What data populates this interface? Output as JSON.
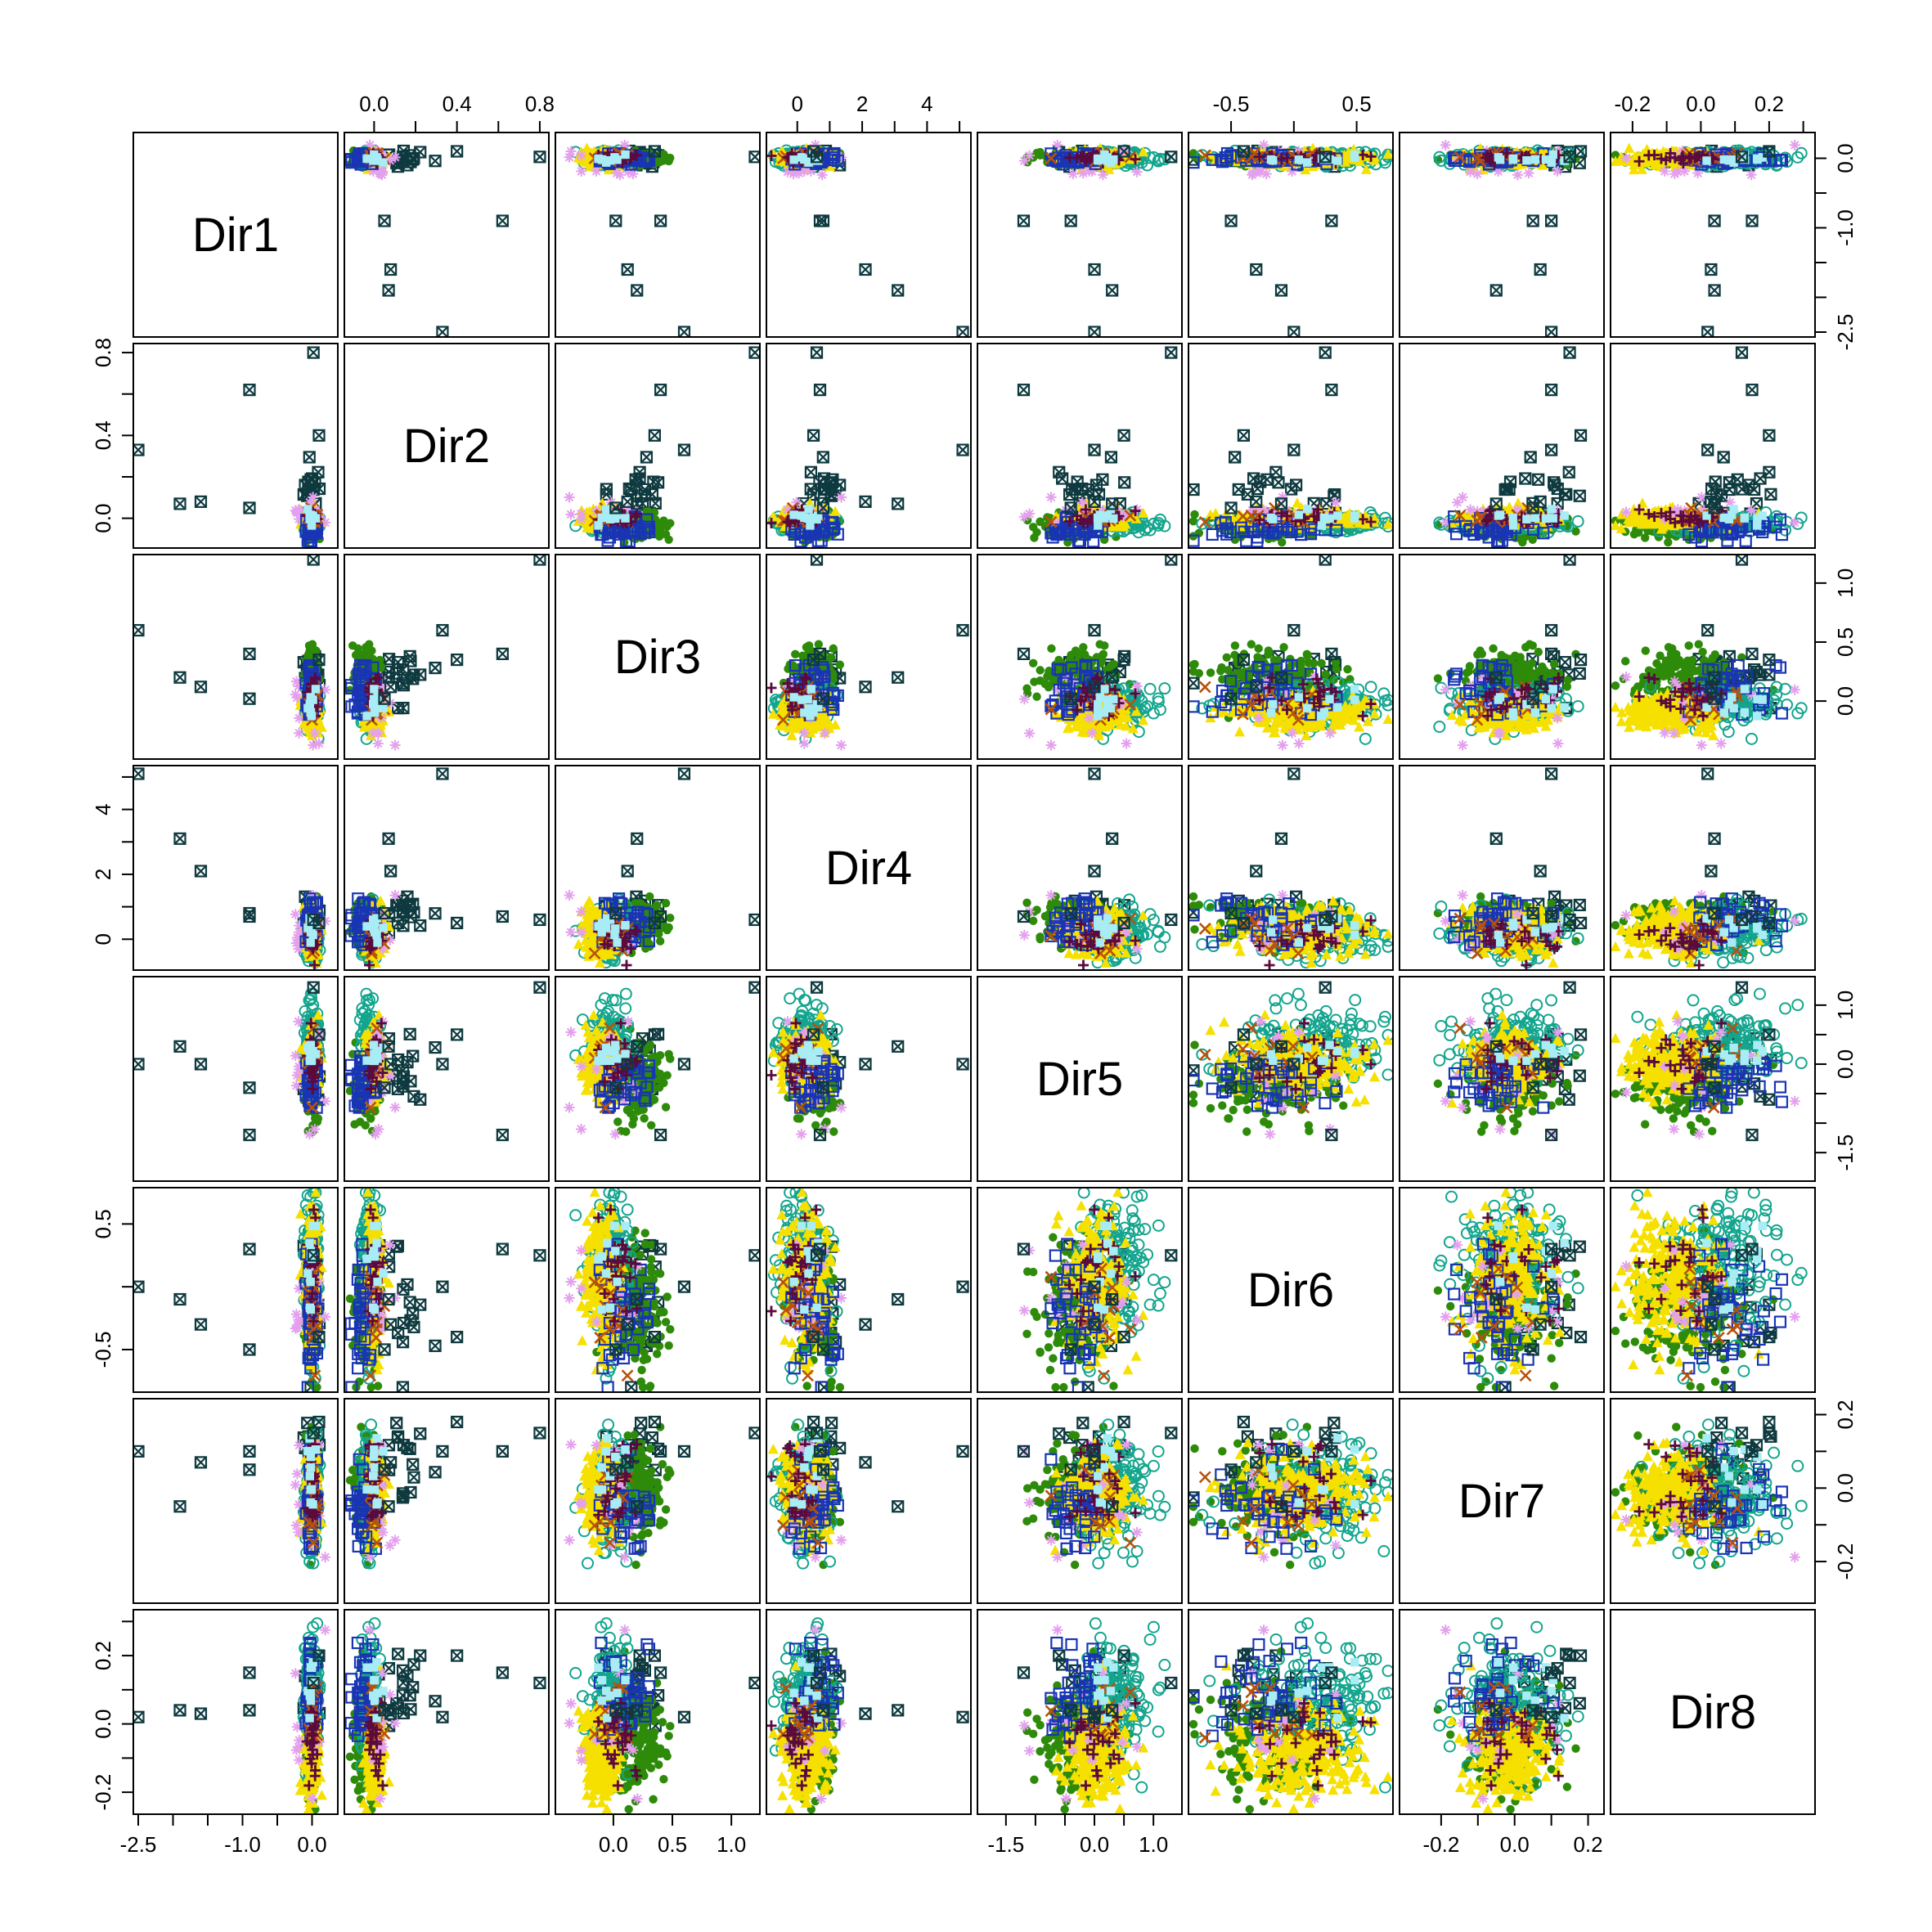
{
  "chart_data": {
    "type": "scatter",
    "subtype": "scatterplot-matrix",
    "variables": [
      "Dir1",
      "Dir2",
      "Dir3",
      "Dir4",
      "Dir5",
      "Dir6",
      "Dir7",
      "Dir8"
    ],
    "axes": [
      {
        "name": "Dir1",
        "range": [
          -2.5,
          0.3
        ],
        "ticks": [
          -2.5,
          -2.0,
          -1.5,
          -1.0,
          -0.5,
          0.0
        ],
        "labels": [
          "-2.5",
          "-1.0",
          "0.0"
        ],
        "label_ticks": [
          -2.5,
          -1.0,
          0.0
        ]
      },
      {
        "name": "Dir2",
        "range": [
          -0.12,
          0.82
        ],
        "ticks": [
          0.0,
          0.2,
          0.4,
          0.6,
          0.8
        ],
        "labels": [
          "0.0",
          "0.4",
          "0.8"
        ],
        "label_ticks": [
          0.0,
          0.4,
          0.8
        ]
      },
      {
        "name": "Dir3",
        "range": [
          -0.45,
          1.2
        ],
        "ticks": [
          0.0,
          0.5,
          1.0
        ],
        "labels": [
          "0.0",
          "0.5",
          "1.0"
        ],
        "label_ticks": [
          0.0,
          0.5,
          1.0
        ]
      },
      {
        "name": "Dir4",
        "range": [
          -0.8,
          5.2
        ],
        "ticks": [
          0,
          1,
          2,
          3,
          4,
          5
        ],
        "labels": [
          "0",
          "2",
          "4"
        ],
        "label_ticks": [
          0,
          2,
          4
        ]
      },
      {
        "name": "Dir5",
        "range": [
          -1.9,
          1.4
        ],
        "ticks": [
          -1.5,
          -1.0,
          -0.5,
          0.0,
          0.5,
          1.0
        ],
        "labels": [
          "-1.5",
          "0.0",
          "1.0"
        ],
        "label_ticks": [
          -1.5,
          0.0,
          1.0
        ]
      },
      {
        "name": "Dir6",
        "range": [
          -0.8,
          0.75
        ],
        "ticks": [
          -0.5,
          0.0,
          0.5
        ],
        "labels": [
          "-0.5",
          "0.5"
        ],
        "label_ticks": [
          -0.5,
          0.5
        ]
      },
      {
        "name": "Dir7",
        "range": [
          -0.3,
          0.23
        ],
        "ticks": [
          -0.2,
          -0.1,
          0.0,
          0.1,
          0.2
        ],
        "labels": [
          "-0.2",
          "0.0",
          "0.2"
        ],
        "label_ticks": [
          -0.2,
          0.0,
          0.2
        ]
      },
      {
        "name": "Dir8",
        "range": [
          -0.25,
          0.32
        ],
        "ticks": [
          -0.2,
          -0.1,
          0.0,
          0.1,
          0.2,
          0.3
        ],
        "labels": [
          "-0.2",
          "0.0",
          "0.2"
        ],
        "label_ticks": [
          -0.2,
          0.0,
          0.2
        ]
      }
    ],
    "groups": [
      {
        "marker": "square-x",
        "color": "#0e3a3f",
        "size": 20
      },
      {
        "marker": "filled-circle",
        "color": "#2e8b0a",
        "size": 160
      },
      {
        "marker": "open-circle",
        "color": "#13a58e",
        "size": 160
      },
      {
        "marker": "filled-triangle",
        "color": "#f5e000",
        "size": 240
      },
      {
        "marker": "asterisk",
        "color": "#e4a0ee",
        "size": 16
      },
      {
        "marker": "open-square",
        "color": "#1935b4",
        "size": 40
      },
      {
        "marker": "x",
        "color": "#b8520a",
        "size": 12
      },
      {
        "marker": "plus",
        "color": "#5a0a3c",
        "size": 25
      },
      {
        "marker": "filled-square",
        "color": "#a8ecf5",
        "size": 10
      }
    ],
    "outliers": [
      [
        -2.5,
        0.33,
        0.6,
        5.1,
        0.0,
        0.0,
        0.1,
        0.02
      ],
      [
        -1.9,
        0.07,
        0.2,
        3.1,
        0.3,
        -0.1,
        -0.05,
        0.04
      ],
      [
        -1.6,
        0.08,
        0.12,
        2.1,
        0.0,
        -0.3,
        0.07,
        0.03
      ],
      [
        -0.9,
        0.05,
        0.02,
        0.8,
        -0.4,
        -0.5,
        0.05,
        0.04
      ],
      [
        -0.9,
        0.62,
        0.4,
        0.7,
        -1.2,
        0.3,
        0.1,
        0.15
      ],
      [
        0.02,
        0.8,
        1.2,
        0.6,
        1.3,
        0.25,
        0.15,
        0.12
      ],
      [
        0.1,
        0.4,
        0.35,
        0.5,
        0.5,
        -0.4,
        0.18,
        0.2
      ]
    ],
    "grid": false,
    "legend": "none"
  }
}
